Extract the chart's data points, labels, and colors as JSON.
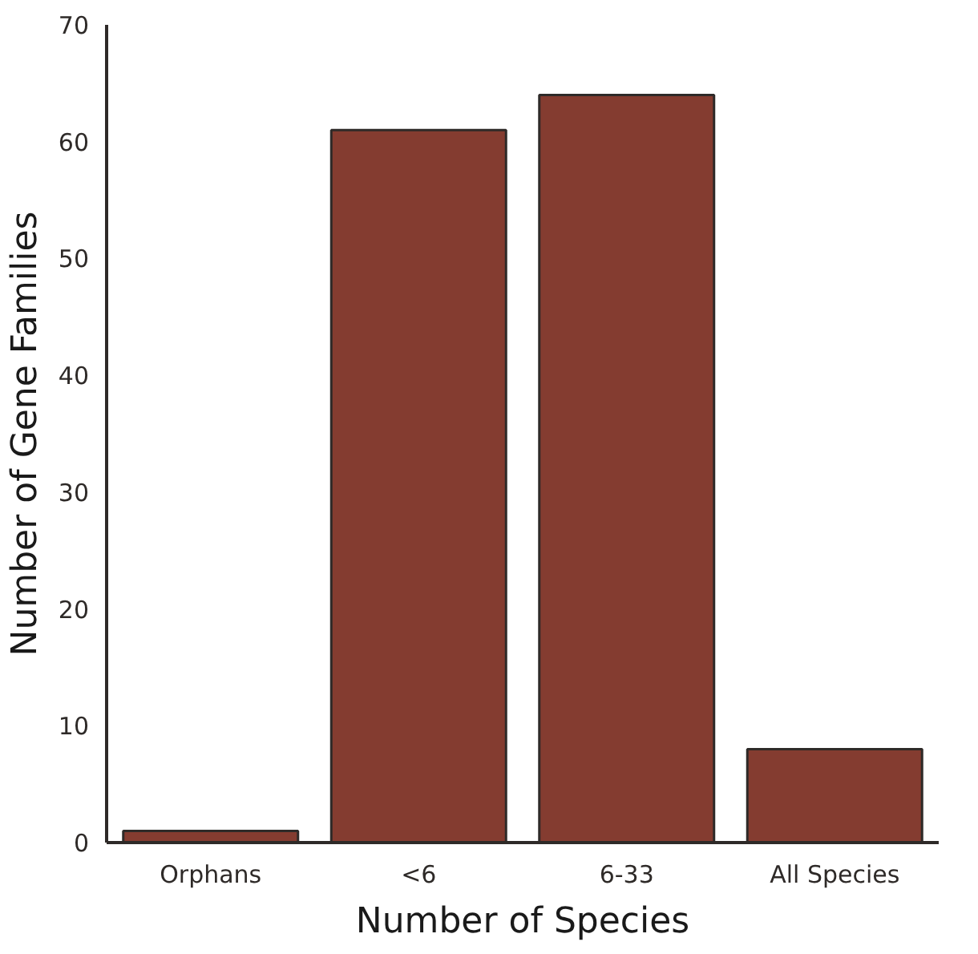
{
  "chart_data": {
    "type": "bar",
    "xlabel": "Number of Species",
    "ylabel": "Number of Gene Families",
    "categories": [
      "Orphans",
      "<6",
      "6-33",
      "All Species"
    ],
    "values": [
      1,
      61,
      64,
      8
    ],
    "color": "#843c30",
    "ylim": [
      0,
      70
    ],
    "yticks": [
      0,
      10,
      20,
      30,
      40,
      50,
      60,
      70
    ],
    "grid": false
  }
}
